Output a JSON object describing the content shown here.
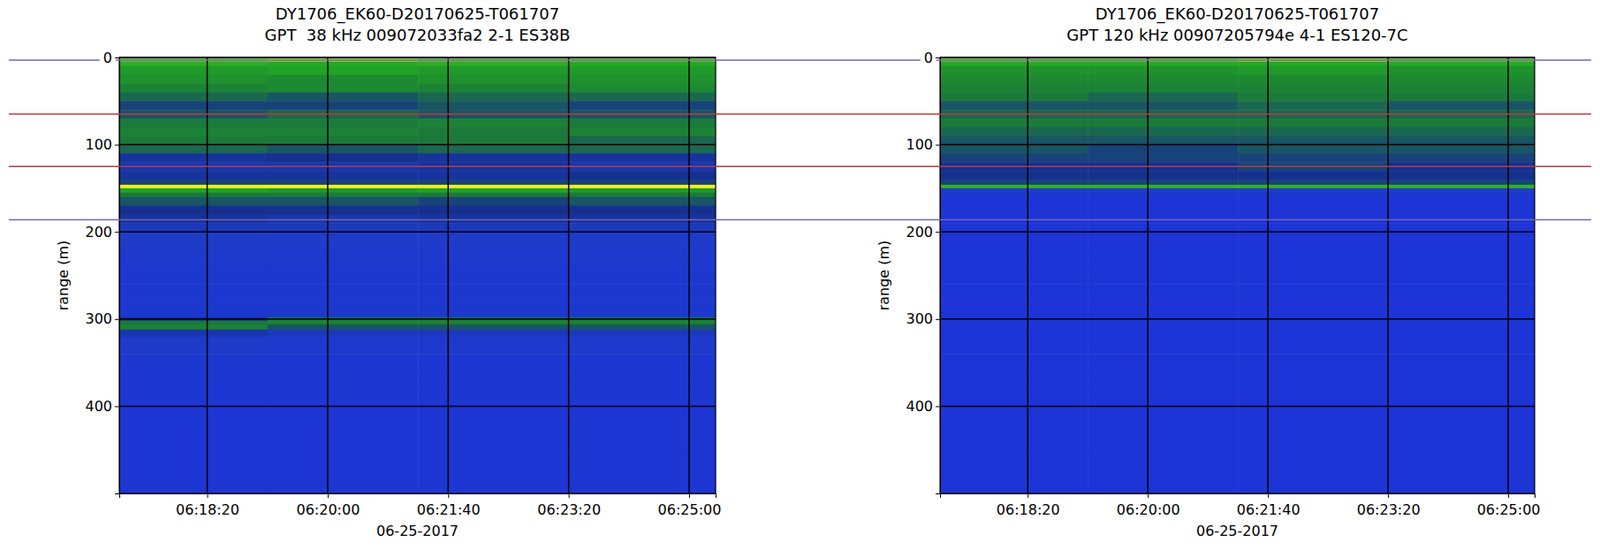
{
  "chart_data": [
    {
      "type": "heatmap",
      "title": "DY1706_EK60-D20170625-T061707",
      "subtitle": "GPT  38 kHz 009072033fa2 2-1 ES38B",
      "ylabel": "range (m)",
      "xlabel": "06-25-2017",
      "xlim": [
        "2017-06-25T06:17:07",
        "2017-06-25T06:25:22"
      ],
      "xticks": [
        {
          "value": "2017-06-25T06:18:20",
          "label": "06:18:20"
        },
        {
          "value": "2017-06-25T06:20:00",
          "label": "06:20:00"
        },
        {
          "value": "2017-06-25T06:21:40",
          "label": "06:21:40"
        },
        {
          "value": "2017-06-25T06:23:20",
          "label": "06:23:20"
        },
        {
          "value": "2017-06-25T06:25:00",
          "label": "06:25:00"
        }
      ],
      "ylim": [
        0,
        500
      ],
      "yticks": [
        0,
        100,
        200,
        300,
        400
      ],
      "grid": true,
      "zlim": [
        -90,
        -50
      ],
      "x_edges": [
        "2017-06-25T06:17:07",
        "2017-06-25T06:19:10",
        "2017-06-25T06:21:15",
        "2017-06-25T06:23:20",
        "2017-06-25T06:25:22"
      ],
      "y_edges": [
        0,
        5,
        10,
        20,
        30,
        40,
        50,
        60,
        70,
        80,
        90,
        100,
        110,
        120,
        130,
        140,
        146,
        150,
        155,
        160,
        170,
        180,
        190,
        200,
        220,
        240,
        260,
        280,
        298,
        302,
        306,
        312,
        320,
        340,
        360,
        380,
        400,
        450,
        500
      ],
      "cells": [
        [
          -58,
          -57,
          -58,
          -58
        ],
        [
          -65,
          -66,
          -65,
          -66
        ],
        [
          -68,
          -67,
          -68,
          -68
        ],
        [
          -69,
          -70,
          -69,
          -69
        ],
        [
          -71,
          -70,
          -71,
          -70
        ],
        [
          -73,
          -74,
          -73,
          -73
        ],
        [
          -75,
          -75,
          -74,
          -75
        ],
        [
          -74,
          -73,
          -74,
          -74
        ],
        [
          -72,
          -72,
          -71,
          -72
        ],
        [
          -71,
          -71,
          -72,
          -71
        ],
        [
          -72,
          -72,
          -72,
          -73
        ],
        [
          -73,
          -74,
          -73,
          -73
        ],
        [
          -77,
          -76,
          -77,
          -77
        ],
        [
          -78,
          -78,
          -77,
          -78
        ],
        [
          -77,
          -77,
          -77,
          -76
        ],
        [
          -75,
          -75,
          -75,
          -75
        ],
        [
          -54,
          -54,
          -54,
          -54
        ],
        [
          -67,
          -68,
          -67,
          -68
        ],
        [
          -72,
          -72,
          -72,
          -72
        ],
        [
          -74,
          -74,
          -75,
          -74
        ],
        [
          -76,
          -76,
          -76,
          -76
        ],
        [
          -77,
          -78,
          -77,
          -77
        ],
        [
          -79,
          -79,
          -79,
          -79
        ],
        [
          -80,
          -81,
          -81,
          -81
        ],
        [
          -82,
          -82,
          -82,
          -82
        ],
        [
          -83,
          -83,
          -83,
          -83
        ],
        [
          -83,
          -83,
          -83,
          -83
        ],
        [
          -83,
          -83,
          -83,
          -83
        ],
        [
          -76,
          -72,
          -72,
          -72
        ],
        [
          -72,
          -71,
          -71,
          -71
        ],
        [
          -71,
          -74,
          -74,
          -74
        ],
        [
          -78,
          -79,
          -79,
          -79
        ],
        [
          -81,
          -82,
          -82,
          -82
        ],
        [
          -83,
          -84,
          -84,
          -84
        ],
        [
          -84,
          -84,
          -84,
          -84
        ],
        [
          -84,
          -84,
          -84,
          -84
        ],
        [
          -85,
          -85,
          -85,
          -85
        ],
        [
          -85,
          -85,
          -85,
          -85
        ]
      ],
      "hlines": [
        {
          "value": 3,
          "color": "#7466b4"
        },
        {
          "value": 65,
          "color": "#c0393b"
        },
        {
          "value": 125,
          "color": "#c0393b"
        },
        {
          "value": 186,
          "color": "#7466b4"
        }
      ]
    },
    {
      "type": "heatmap",
      "title": "DY1706_EK60-D20170625-T061707",
      "subtitle": "GPT 120 kHz 00907205794e 4-1 ES120-7C",
      "ylabel": "range (m)",
      "xlabel": "06-25-2017",
      "xlim": [
        "2017-06-25T06:17:07",
        "2017-06-25T06:25:22"
      ],
      "xticks": [
        {
          "value": "2017-06-25T06:18:20",
          "label": "06:18:20"
        },
        {
          "value": "2017-06-25T06:20:00",
          "label": "06:20:00"
        },
        {
          "value": "2017-06-25T06:21:40",
          "label": "06:21:40"
        },
        {
          "value": "2017-06-25T06:23:20",
          "label": "06:23:20"
        },
        {
          "value": "2017-06-25T06:25:00",
          "label": "06:25:00"
        }
      ],
      "ylim": [
        0,
        500
      ],
      "yticks": [
        0,
        100,
        200,
        300,
        400
      ],
      "grid": true,
      "zlim": [
        -90,
        -50
      ],
      "x_edges": [
        "2017-06-25T06:17:07",
        "2017-06-25T06:19:10",
        "2017-06-25T06:21:15",
        "2017-06-25T06:23:20",
        "2017-06-25T06:25:22"
      ],
      "y_edges": [
        0,
        5,
        10,
        20,
        30,
        40,
        50,
        60,
        70,
        80,
        90,
        100,
        110,
        120,
        130,
        140,
        146,
        150,
        155,
        160,
        170,
        180,
        190,
        200,
        220,
        240,
        260,
        280,
        298,
        302,
        306,
        312,
        320,
        340,
        360,
        380,
        400,
        450,
        500
      ],
      "cells": [
        [
          -58,
          -58,
          -57,
          -58
        ],
        [
          -66,
          -66,
          -66,
          -66
        ],
        [
          -69,
          -69,
          -68,
          -69
        ],
        [
          -70,
          -70,
          -70,
          -70
        ],
        [
          -71,
          -71,
          -71,
          -71
        ],
        [
          -72,
          -73,
          -72,
          -72
        ],
        [
          -74,
          -74,
          -73,
          -74
        ],
        [
          -73,
          -73,
          -73,
          -73
        ],
        [
          -72,
          -72,
          -72,
          -72
        ],
        [
          -73,
          -73,
          -73,
          -73
        ],
        [
          -74,
          -74,
          -74,
          -74
        ],
        [
          -74,
          -75,
          -74,
          -74
        ],
        [
          -75,
          -75,
          -75,
          -75
        ],
        [
          -76,
          -76,
          -75,
          -76
        ],
        [
          -76,
          -76,
          -76,
          -76
        ],
        [
          -75,
          -75,
          -75,
          -75
        ],
        [
          -64,
          -64,
          -64,
          -64
        ],
        [
          -80,
          -80,
          -80,
          -80
        ],
        [
          -83,
          -83,
          -83,
          -83
        ],
        [
          -86,
          -86,
          -86,
          -86
        ],
        [
          -86,
          -86,
          -86,
          -86
        ],
        [
          -86,
          -86,
          -86,
          -86
        ],
        [
          -86,
          -86,
          -86,
          -86
        ],
        [
          -86,
          -86,
          -86,
          -86
        ],
        [
          -86,
          -86,
          -86,
          -86
        ],
        [
          -86,
          -86,
          -86,
          -86
        ],
        [
          -86,
          -86,
          -86,
          -86
        ],
        [
          -86,
          -86,
          -86,
          -86
        ],
        [
          -84,
          -84,
          -84,
          -84
        ],
        [
          -85,
          -85,
          -85,
          -85
        ],
        [
          -86,
          -86,
          -86,
          -86
        ],
        [
          -86,
          -86,
          -86,
          -86
        ],
        [
          -86,
          -86,
          -86,
          -86
        ],
        [
          -86,
          -86,
          -86,
          -86
        ],
        [
          -86,
          -86,
          -86,
          -86
        ],
        [
          -86,
          -86,
          -86,
          -86
        ],
        [
          -86,
          -86,
          -86,
          -86
        ],
        [
          -86,
          -86,
          -86,
          -86
        ]
      ],
      "hlines": [
        {
          "value": 3,
          "color": "#7466b4"
        },
        {
          "value": 65,
          "color": "#c0393b"
        },
        {
          "value": 125,
          "color": "#c0393b"
        },
        {
          "value": 186,
          "color": "#7466b4"
        }
      ]
    }
  ]
}
